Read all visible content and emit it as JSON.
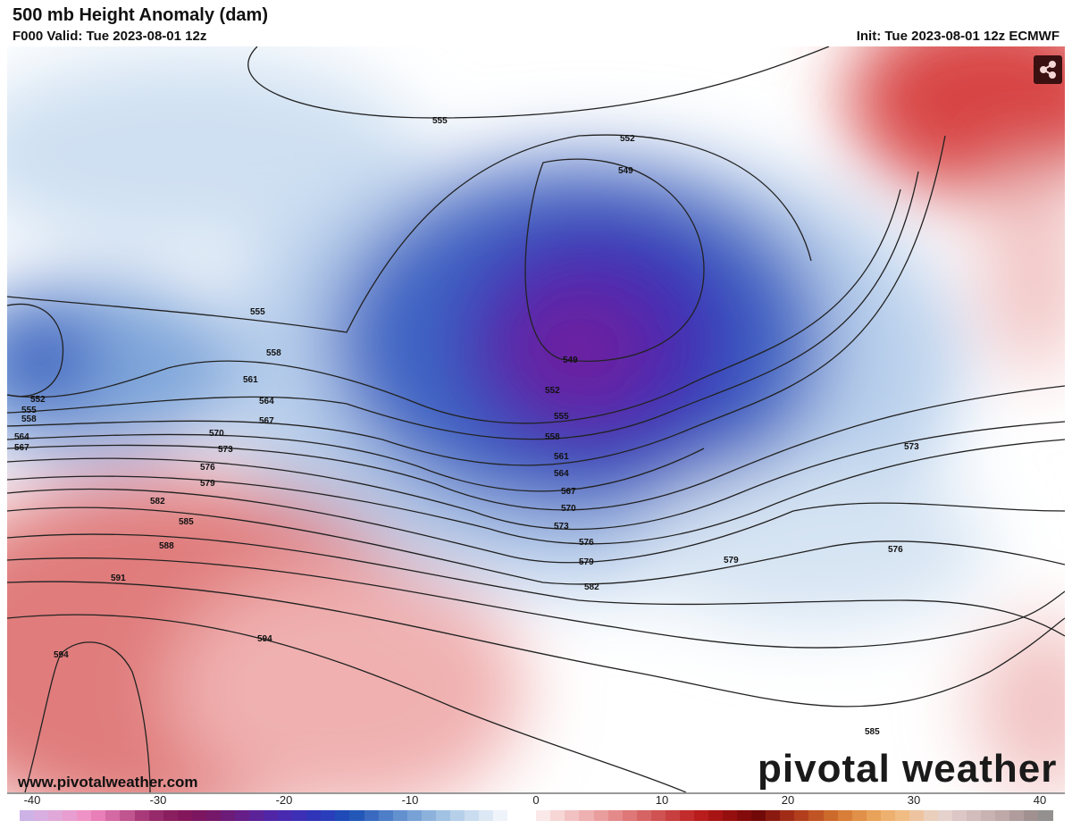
{
  "header": {
    "title": "500 mb Height Anomaly (dam)",
    "valid": "F000 Valid: Tue 2023-08-01 12z",
    "init": "Init: Tue 2023-08-01 12z ECMWF"
  },
  "watermark": "www.pivotalweather.com",
  "logo": "pivotal weather",
  "share_icon": "share-icon",
  "contour_labels": [
    "555",
    "552",
    "549",
    "555",
    "549",
    "552",
    "555",
    "558",
    "561",
    "564",
    "567",
    "570",
    "573",
    "576",
    "579",
    "582",
    "585",
    "588",
    "591",
    "594",
    "594",
    "552",
    "555",
    "558",
    "564",
    "567",
    "558",
    "561",
    "564",
    "567",
    "570",
    "573",
    "576",
    "579",
    "573",
    "576",
    "579",
    "582",
    "585"
  ],
  "colorbar": {
    "ticks": [
      "-40",
      "-30",
      "-20",
      "-10",
      "0",
      "10",
      "20",
      "30",
      "40"
    ],
    "colors": [
      "#cdb2e6",
      "#d9aee0",
      "#e0a8d8",
      "#e89ed0",
      "#ef92c6",
      "#e87fb8",
      "#d46aa4",
      "#c05590",
      "#a83a7a",
      "#962a6a",
      "#8a1f60",
      "#84175c",
      "#7c1660",
      "#75186a",
      "#6d1b78",
      "#661e88",
      "#5c2298",
      "#5126a6",
      "#472ab0",
      "#3d2fb6",
      "#3034b8",
      "#2a3ebb",
      "#1f4ab8",
      "#2458b8",
      "#3a6ac0",
      "#4f7ec8",
      "#6390cf",
      "#78a2d6",
      "#8cb2dc",
      "#a2c2e3",
      "#b6d0ea",
      "#cadcf0",
      "#dde8f5",
      "#eff4fa",
      "#ffffff",
      "#ffffff",
      "#fbe9e9",
      "#f7d6d6",
      "#f2c2c2",
      "#eeb0b0",
      "#ea9d9d",
      "#e48a8a",
      "#de7777",
      "#d76464",
      "#d05252",
      "#c83f3f",
      "#c22c2c",
      "#b81c1c",
      "#a81414",
      "#960f0f",
      "#840b0b",
      "#720909",
      "#8a1a10",
      "#a02c18",
      "#b23e1e",
      "#c05424",
      "#cc6a2c",
      "#d87e38",
      "#e09048",
      "#e8a25a",
      "#eeb06e",
      "#f0bc84",
      "#eec4a0",
      "#ead0bc",
      "#e6d2cc",
      "#dcc6c6",
      "#d2bcbc",
      "#c8b2b2",
      "#bea8a8",
      "#b09c9c",
      "#a09090",
      "#949090"
    ]
  }
}
